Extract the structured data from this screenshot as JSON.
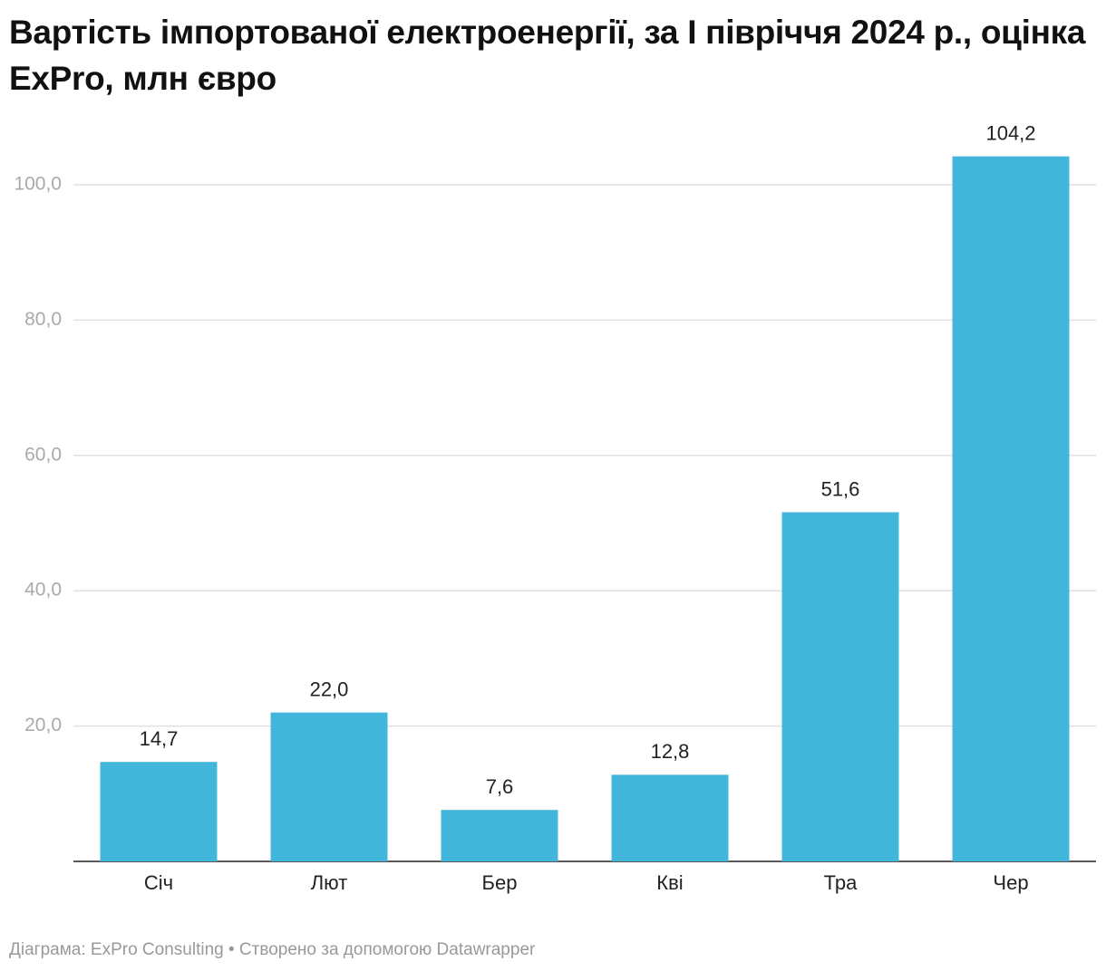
{
  "chart_data": {
    "type": "bar",
    "title": "Вартість імпортованої електроенергії, за І півріччя 2024 р., оцінка ExPro, млн євро",
    "categories": [
      "Січ",
      "Лют",
      "Бер",
      "Кві",
      "Тра",
      "Чер"
    ],
    "values": [
      14.7,
      22.0,
      7.6,
      12.8,
      51.6,
      104.2
    ],
    "value_labels": [
      "14,7",
      "22,0",
      "7,6",
      "12,8",
      "51,6",
      "104,2"
    ],
    "color": "#41b6da",
    "ylim": [
      0,
      105
    ],
    "yticks": [
      {
        "value": 20,
        "label": "20,0"
      },
      {
        "value": 40,
        "label": "40,0"
      },
      {
        "value": 60,
        "label": "60,0"
      },
      {
        "value": 80,
        "label": "80,0"
      },
      {
        "value": 100,
        "label": "100,0"
      }
    ],
    "grid": true,
    "footer": "Діаграма: ExPro Consulting • Створено за допомогою Datawrapper"
  }
}
